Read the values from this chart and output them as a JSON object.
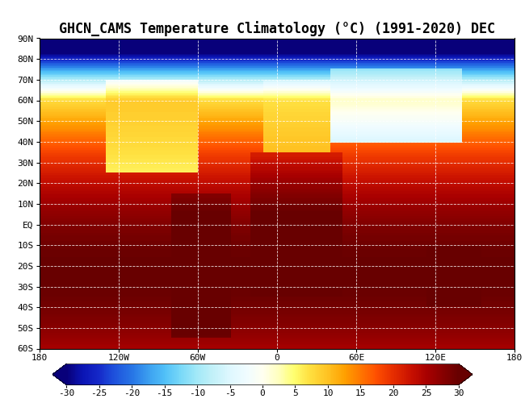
{
  "title": "GHCN_CAMS Temperature Climatology (°C) (1991-2020) DEC",
  "colorbar_ticks": [
    -30,
    -25,
    -20,
    -15,
    -10,
    -5,
    0,
    5,
    10,
    15,
    20,
    25,
    30
  ],
  "vmin": -30,
  "vmax": 30,
  "xlim": [
    -180,
    180
  ],
  "ylim": [
    -60,
    90
  ],
  "xticks": [
    -180,
    -120,
    -60,
    0,
    60,
    120,
    180
  ],
  "xtick_labels": [
    "180",
    "120W",
    "60W",
    "0",
    "60E",
    "120E",
    "180"
  ],
  "yticks": [
    -60,
    -50,
    -40,
    -30,
    -20,
    -10,
    0,
    10,
    20,
    30,
    40,
    50,
    60,
    70,
    80,
    90
  ],
  "ytick_labels": [
    "60S",
    "50S",
    "40S",
    "30S",
    "20S",
    "10S",
    "EQ",
    "10N",
    "20N",
    "30N",
    "40N",
    "50N",
    "60N",
    "70N",
    "80N",
    "90N"
  ],
  "grid_lons": [
    -120,
    -60,
    0,
    60,
    120
  ],
  "grid_lats": [
    -50,
    -40,
    -30,
    -20,
    -10,
    0,
    10,
    20,
    30,
    40,
    50,
    60,
    70,
    80
  ],
  "title_fontsize": 12,
  "tick_fontsize": 8,
  "cbar_tick_fontsize": 8,
  "colormap_colors": [
    [
      0.0,
      "#08007a"
    ],
    [
      0.04,
      "#0a14b4"
    ],
    [
      0.08,
      "#1428c8"
    ],
    [
      0.12,
      "#1e50dc"
    ],
    [
      0.17,
      "#2878e6"
    ],
    [
      0.21,
      "#3ca0f0"
    ],
    [
      0.25,
      "#50c0f8"
    ],
    [
      0.29,
      "#78d8f8"
    ],
    [
      0.33,
      "#a0e8f8"
    ],
    [
      0.37,
      "#c0f0f8"
    ],
    [
      0.42,
      "#e0f8ff"
    ],
    [
      0.46,
      "#f0fcff"
    ],
    [
      0.5,
      "#fffff0"
    ],
    [
      0.54,
      "#ffffc0"
    ],
    [
      0.58,
      "#ffff70"
    ],
    [
      0.62,
      "#ffe040"
    ],
    [
      0.67,
      "#ffc020"
    ],
    [
      0.71,
      "#ffa000"
    ],
    [
      0.75,
      "#ff7800"
    ],
    [
      0.79,
      "#ff5000"
    ],
    [
      0.83,
      "#e83000"
    ],
    [
      0.88,
      "#c81000"
    ],
    [
      0.92,
      "#a80000"
    ],
    [
      0.96,
      "#880000"
    ],
    [
      1.0,
      "#680000"
    ]
  ]
}
